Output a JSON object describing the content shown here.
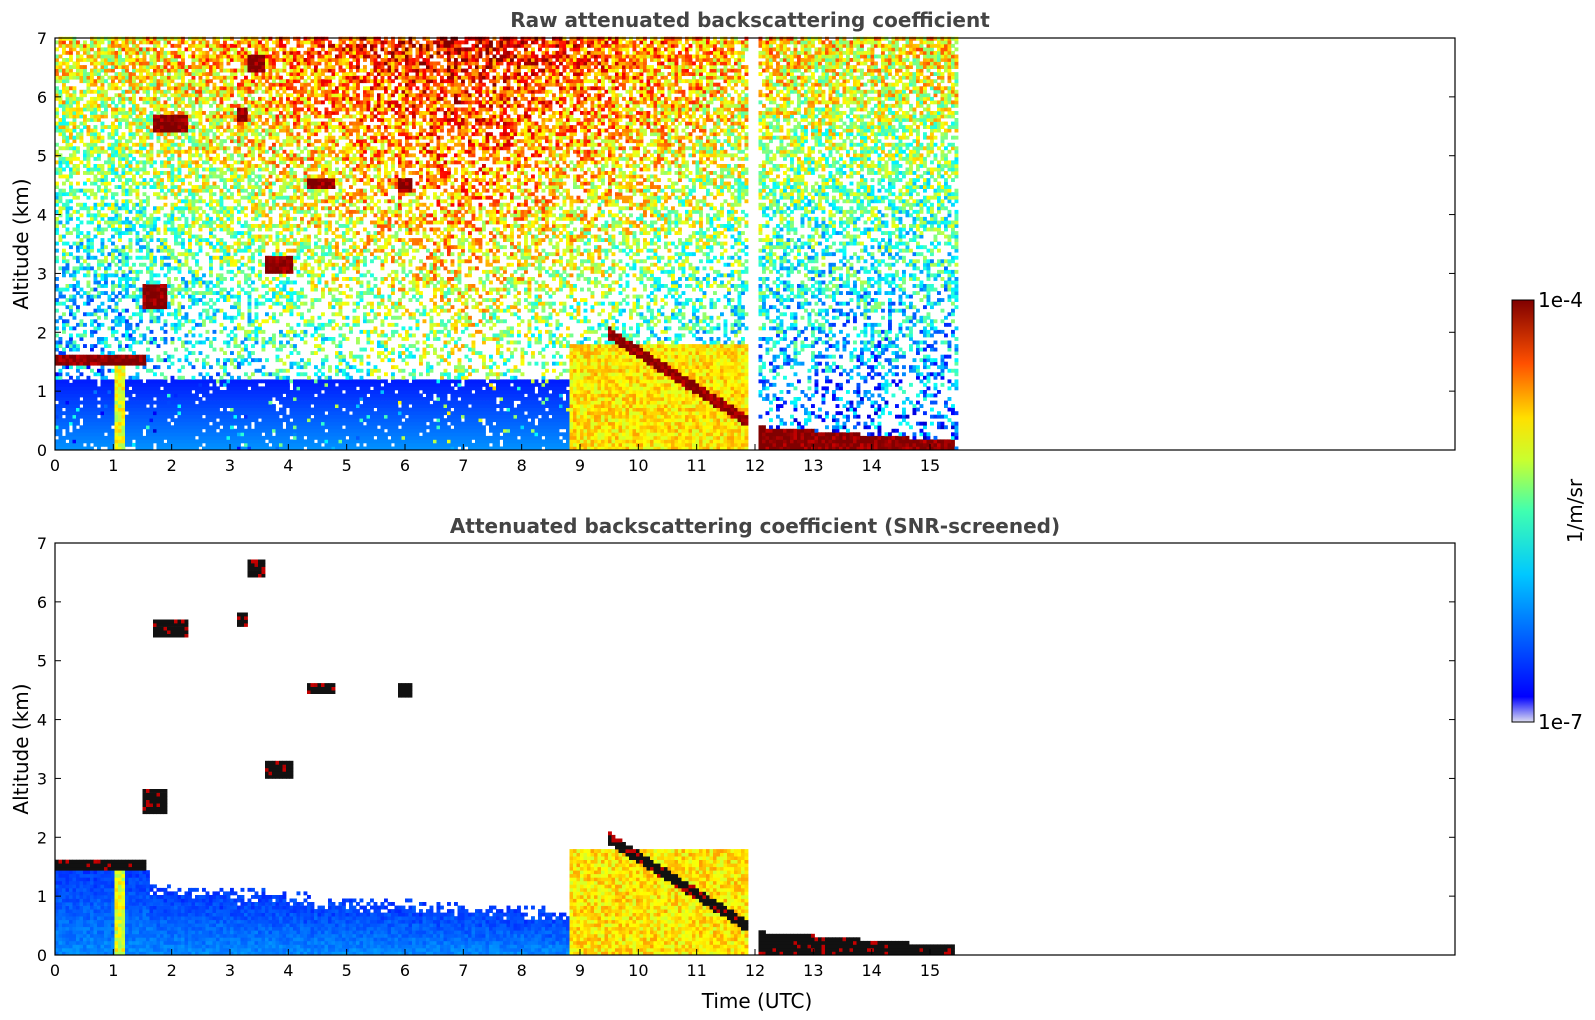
{
  "chart_data": [
    {
      "type": "heatmap",
      "title": "Raw attenuated backscattering coefficient",
      "xlabel": "",
      "ylabel": "Altitude (km)",
      "xlim": [
        0,
        24
      ],
      "ylim": [
        0,
        7
      ],
      "xticks": [
        "0",
        "1",
        "2",
        "3",
        "4",
        "5",
        "6",
        "7",
        "8",
        "9",
        "10",
        "11",
        "12",
        "13",
        "14",
        "15"
      ],
      "yticks": [
        "0",
        "1",
        "2",
        "3",
        "4",
        "5",
        "6",
        "7"
      ],
      "data_extent_hours": [
        0,
        15.45
      ],
      "missing_data_gap_hours": [
        11.93,
        12.05
      ],
      "features": [
        {
          "kind": "cloud_layer",
          "x": [
            0,
            1.55
          ],
          "altitude_km": [
            1.45,
            1.65
          ],
          "level": 1.0
        },
        {
          "kind": "precip_column",
          "x": [
            1.05,
            1.2
          ],
          "altitude_km": [
            0,
            1.5
          ],
          "level": 0.6
        },
        {
          "kind": "elevated_layer",
          "x": [
            1.7,
            2.3
          ],
          "altitude_km": [
            5.4,
            5.7
          ],
          "level": 1.0
        },
        {
          "kind": "elevated_layer",
          "x": [
            3.3,
            3.6
          ],
          "altitude_km": [
            6.4,
            6.7
          ],
          "level": 1.0
        },
        {
          "kind": "elevated_layer",
          "x": [
            3.1,
            3.3
          ],
          "altitude_km": [
            5.6,
            5.8
          ],
          "level": 1.0
        },
        {
          "kind": "elevated_layer",
          "x": [
            4.3,
            4.8
          ],
          "altitude_km": [
            4.45,
            4.6
          ],
          "level": 1.0
        },
        {
          "kind": "elevated_layer",
          "x": [
            5.9,
            6.1
          ],
          "altitude_km": [
            4.4,
            4.6
          ],
          "level": 1.0
        },
        {
          "kind": "elevated_layer",
          "x": [
            3.6,
            4.1
          ],
          "altitude_km": [
            3.0,
            3.3
          ],
          "level": 1.0
        },
        {
          "kind": "elevated_layer",
          "x": [
            1.5,
            1.9
          ],
          "altitude_km": [
            2.4,
            2.8
          ],
          "level": 1.0
        },
        {
          "kind": "aerosol_band",
          "x": [
            8.8,
            11.9
          ],
          "altitude_km": [
            0,
            1.8
          ],
          "level": 0.65
        },
        {
          "kind": "cloud_top",
          "x": [
            9.5,
            11.9
          ],
          "altitude_km_start": 2.0,
          "altitude_km_end": 0.5,
          "level": 1.0
        },
        {
          "kind": "boundary_layer",
          "x": [
            12.05,
            15.45
          ],
          "altitude_km_start": 0.4,
          "altitude_km_end": 0.15,
          "level": 1.0
        }
      ]
    },
    {
      "type": "heatmap",
      "title": "Attenuated backscattering coefficient (SNR-screened)",
      "xlabel": "Time (UTC)",
      "ylabel": "Altitude (km)",
      "xlim": [
        0,
        24
      ],
      "ylim": [
        0,
        7
      ],
      "xticks": [
        "0",
        "1",
        "2",
        "3",
        "4",
        "5",
        "6",
        "7",
        "8",
        "9",
        "10",
        "11",
        "12",
        "13",
        "14",
        "15"
      ],
      "yticks": [
        "0",
        "1",
        "2",
        "3",
        "4",
        "5",
        "6",
        "7"
      ],
      "data_extent_hours": [
        0,
        15.45
      ],
      "missing_data_gap_hours": [
        11.93,
        12.05
      ],
      "screening": "SNR"
    }
  ],
  "colorbar": {
    "label": "1/m/sr",
    "min_label": "1e-7",
    "max_label": "1e-4",
    "scale": "log",
    "range": [
      1e-07,
      0.0001
    ],
    "colormap": "jet",
    "low_end_color": "#dcdcf0"
  }
}
